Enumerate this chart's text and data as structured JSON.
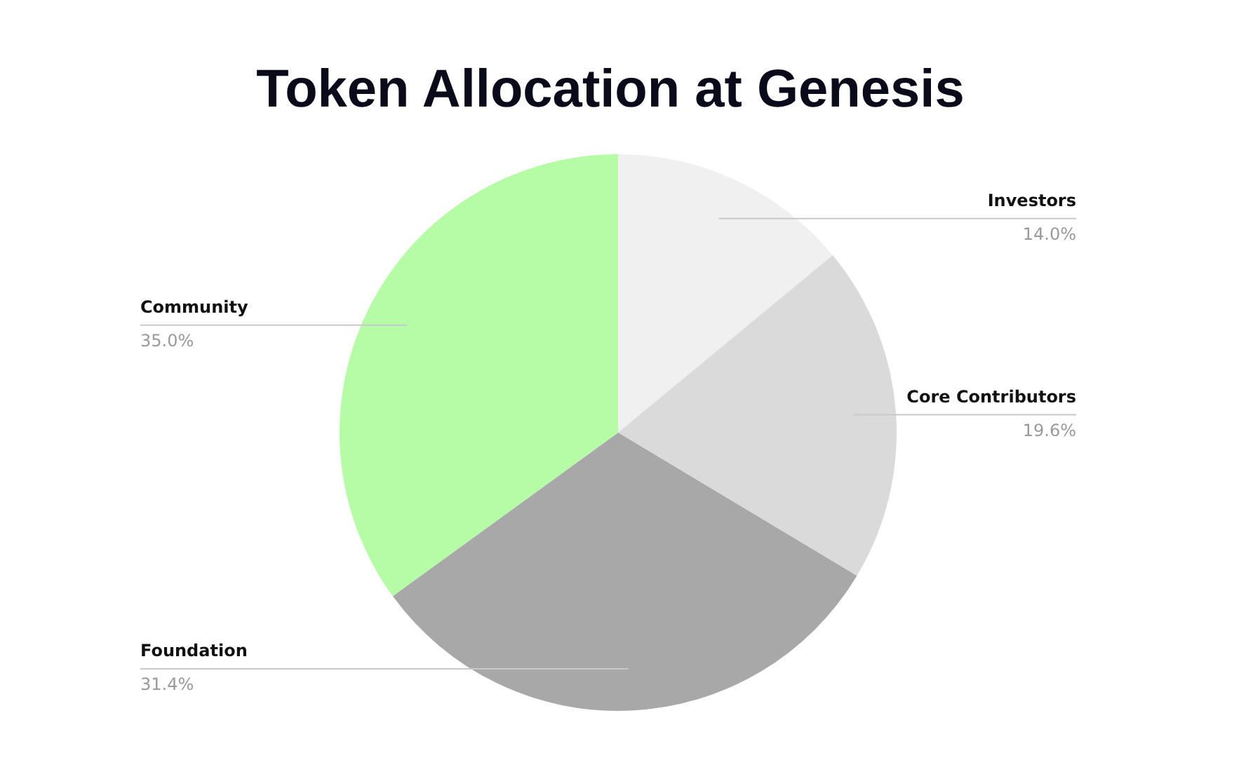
{
  "chart_data": {
    "type": "pie",
    "title": "Token Allocation at Genesis",
    "categories": [
      "Investors",
      "Core Contributors",
      "Foundation",
      "Community"
    ],
    "values": [
      14.0,
      19.6,
      31.4,
      35.0
    ],
    "value_labels": [
      "14.0%",
      "19.6%",
      "31.4%",
      "35.0%"
    ],
    "colors": [
      "#f0f0f0",
      "#dadada",
      "#a8a8a8",
      "#b6fca6"
    ],
    "legend": false
  }
}
